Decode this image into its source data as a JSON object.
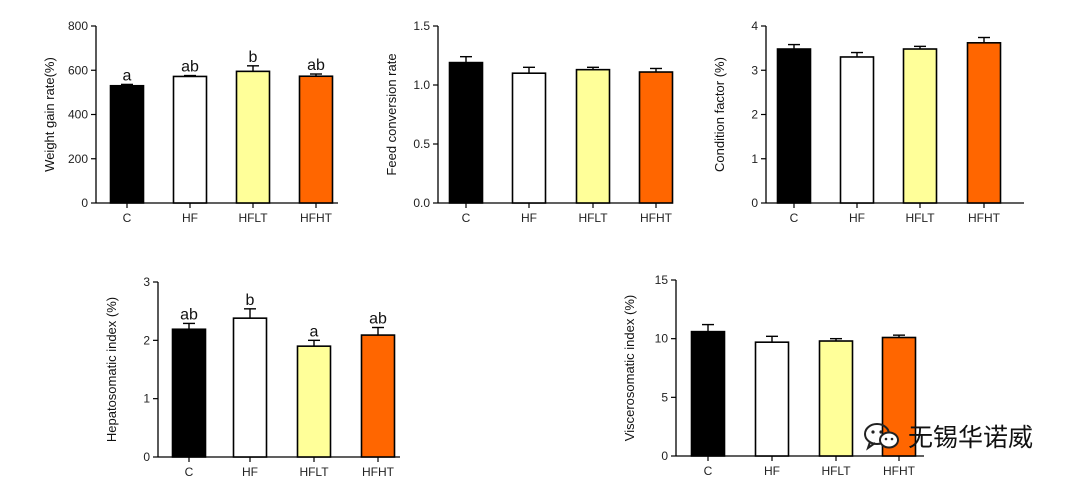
{
  "chart_data": [
    {
      "type": "bar",
      "categories": [
        "C",
        "HF",
        "HFLT",
        "HFHT"
      ],
      "values": [
        530,
        572,
        595,
        573
      ],
      "errors": [
        6,
        4,
        25,
        10
      ],
      "labels": [
        "a",
        "ab",
        "b",
        "ab"
      ],
      "colors": [
        "#000000",
        "#ffffff",
        "#ffff99",
        "#ff6600"
      ],
      "ylabel": "Weight gain rate(%)",
      "ylim": [
        0,
        800
      ],
      "yticks": [
        "0",
        "200",
        "400",
        "600",
        "800"
      ],
      "tick_values": [
        0,
        200,
        400,
        600,
        800
      ]
    },
    {
      "type": "bar",
      "categories": [
        "C",
        "HF",
        "HFLT",
        "HFHT"
      ],
      "values": [
        1.19,
        1.1,
        1.13,
        1.11
      ],
      "errors": [
        0.05,
        0.05,
        0.02,
        0.03
      ],
      "labels": [
        "",
        "",
        "",
        ""
      ],
      "colors": [
        "#000000",
        "#ffffff",
        "#ffff99",
        "#ff6600"
      ],
      "ylabel": "Feed conversion rate",
      "ylim": [
        0,
        1.5
      ],
      "yticks": [
        "0.0",
        "0.5",
        "1.0",
        "1.5"
      ],
      "tick_values": [
        0,
        0.5,
        1.0,
        1.5
      ]
    },
    {
      "type": "bar",
      "categories": [
        "C",
        "HF",
        "HFLT",
        "HFHT"
      ],
      "values": [
        3.48,
        3.3,
        3.48,
        3.62
      ],
      "errors": [
        0.1,
        0.1,
        0.06,
        0.12
      ],
      "labels": [
        "",
        "",
        "",
        ""
      ],
      "colors": [
        "#000000",
        "#ffffff",
        "#ffff99",
        "#ff6600"
      ],
      "ylabel": "Condition factor (%)",
      "ylim": [
        0,
        4
      ],
      "yticks": [
        "0",
        "1",
        "2",
        "3",
        "4"
      ],
      "tick_values": [
        0,
        1,
        2,
        3,
        4
      ]
    },
    {
      "type": "bar",
      "categories": [
        "C",
        "HF",
        "HFLT",
        "HFHT"
      ],
      "values": [
        2.19,
        2.38,
        1.9,
        2.09
      ],
      "errors": [
        0.1,
        0.16,
        0.1,
        0.13
      ],
      "labels": [
        "ab",
        "b",
        "a",
        "ab"
      ],
      "colors": [
        "#000000",
        "#ffffff",
        "#ffff99",
        "#ff6600"
      ],
      "ylabel": "Hepatosomatic index (%)",
      "ylim": [
        0,
        3
      ],
      "yticks": [
        "0",
        "1",
        "2",
        "3"
      ],
      "tick_values": [
        0,
        1,
        2,
        3
      ]
    },
    {
      "type": "bar",
      "categories": [
        "C",
        "HF",
        "HFLT",
        "HFHT"
      ],
      "values": [
        10.6,
        9.7,
        9.8,
        10.1
      ],
      "errors": [
        0.6,
        0.5,
        0.2,
        0.2
      ],
      "labels": [
        "",
        "",
        "",
        ""
      ],
      "colors": [
        "#000000",
        "#ffffff",
        "#ffff99",
        "#ff6600"
      ],
      "ylabel": "Viscerosomatic index (%)",
      "ylim": [
        0,
        15
      ],
      "yticks": [
        "0",
        "5",
        "10",
        "15"
      ],
      "tick_values": [
        0,
        5,
        10,
        15
      ]
    }
  ],
  "watermark": {
    "text": "无锡华诺威",
    "icon": "wechat-icon"
  }
}
